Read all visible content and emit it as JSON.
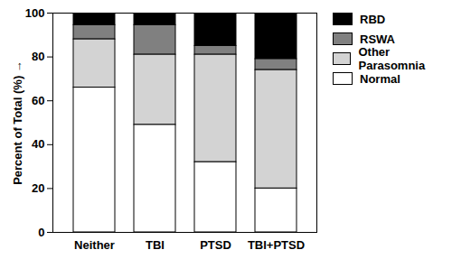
{
  "chart_data": {
    "type": "bar",
    "stacked": true,
    "legend": "top-right",
    "ylabel": "Percent of Total (%)",
    "categories": [
      "Neither",
      "TBI",
      "PTSD",
      "TBI+PTSD"
    ],
    "series": [
      {
        "name": "RBD",
        "color": "#000000",
        "values": [
          5.5,
          5.5,
          15,
          21
        ]
      },
      {
        "name": "RSWA",
        "color": "#808080",
        "values": [
          6.5,
          13.5,
          4,
          5
        ]
      },
      {
        "name": "Other Parasomnia",
        "color": "#d3d3d3",
        "values": [
          22,
          32,
          49,
          54
        ]
      },
      {
        "name": "Normal",
        "color": "#ffffff",
        "values": [
          66,
          49,
          32,
          20
        ]
      }
    ],
    "ylim": [
      0,
      100
    ],
    "yticks": [
      0,
      20,
      40,
      60,
      80,
      100
    ]
  }
}
